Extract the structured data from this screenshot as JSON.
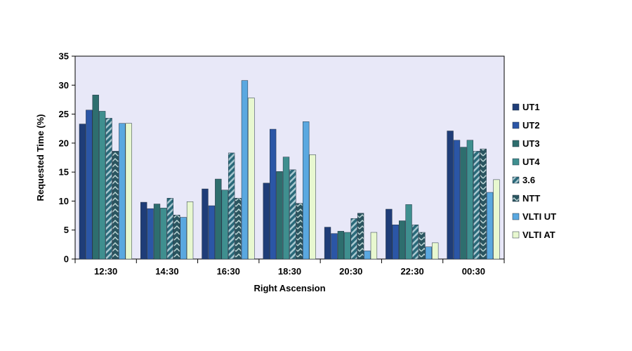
{
  "chart_data": {
    "type": "bar",
    "title": "",
    "xlabel": "Right Ascension",
    "ylabel": "Requested Time (%)",
    "ylim": [
      0,
      35
    ],
    "yticks": [
      0,
      5,
      10,
      15,
      20,
      25,
      30,
      35
    ],
    "categories": [
      "12:30",
      "14:30",
      "16:30",
      "18:30",
      "20:30",
      "22:30",
      "00:30"
    ],
    "legend_position": "right",
    "plot_background": "#e8e8f8",
    "series": [
      {
        "name": "UT1",
        "color": "#1f3d78",
        "pattern": "solid",
        "values": [
          23.3,
          9.8,
          12.1,
          13.1,
          5.5,
          8.6,
          22.1
        ]
      },
      {
        "name": "UT2",
        "color": "#2b56a6",
        "pattern": "solid",
        "values": [
          25.7,
          8.7,
          9.2,
          22.4,
          4.4,
          5.9,
          20.5
        ]
      },
      {
        "name": "UT3",
        "color": "#2e6e6e",
        "pattern": "solid",
        "values": [
          28.3,
          9.5,
          13.8,
          15.1,
          4.8,
          6.6,
          19.3
        ]
      },
      {
        "name": "UT4",
        "color": "#3f8f8f",
        "pattern": "solid",
        "values": [
          25.5,
          8.8,
          11.9,
          17.6,
          4.6,
          9.4,
          20.5
        ]
      },
      {
        "name": "3.6",
        "color": "#2a6a7a",
        "pattern": "diagonal",
        "values": [
          24.3,
          10.5,
          18.3,
          15.4,
          7.0,
          5.9,
          18.6
        ]
      },
      {
        "name": "NTT",
        "color": "#2a5560",
        "pattern": "chevron",
        "values": [
          18.6,
          7.6,
          10.5,
          9.6,
          7.9,
          4.6,
          19.0
        ]
      },
      {
        "name": "VLTI UT",
        "color": "#5aa8e0",
        "pattern": "solid",
        "values": [
          23.4,
          7.2,
          30.8,
          23.7,
          1.4,
          2.1,
          11.5
        ]
      },
      {
        "name": "VLTI AT",
        "color": "#e8f8d0",
        "pattern": "solid",
        "values": [
          23.4,
          9.9,
          27.8,
          18.0,
          4.6,
          2.8,
          13.7
        ]
      }
    ]
  }
}
